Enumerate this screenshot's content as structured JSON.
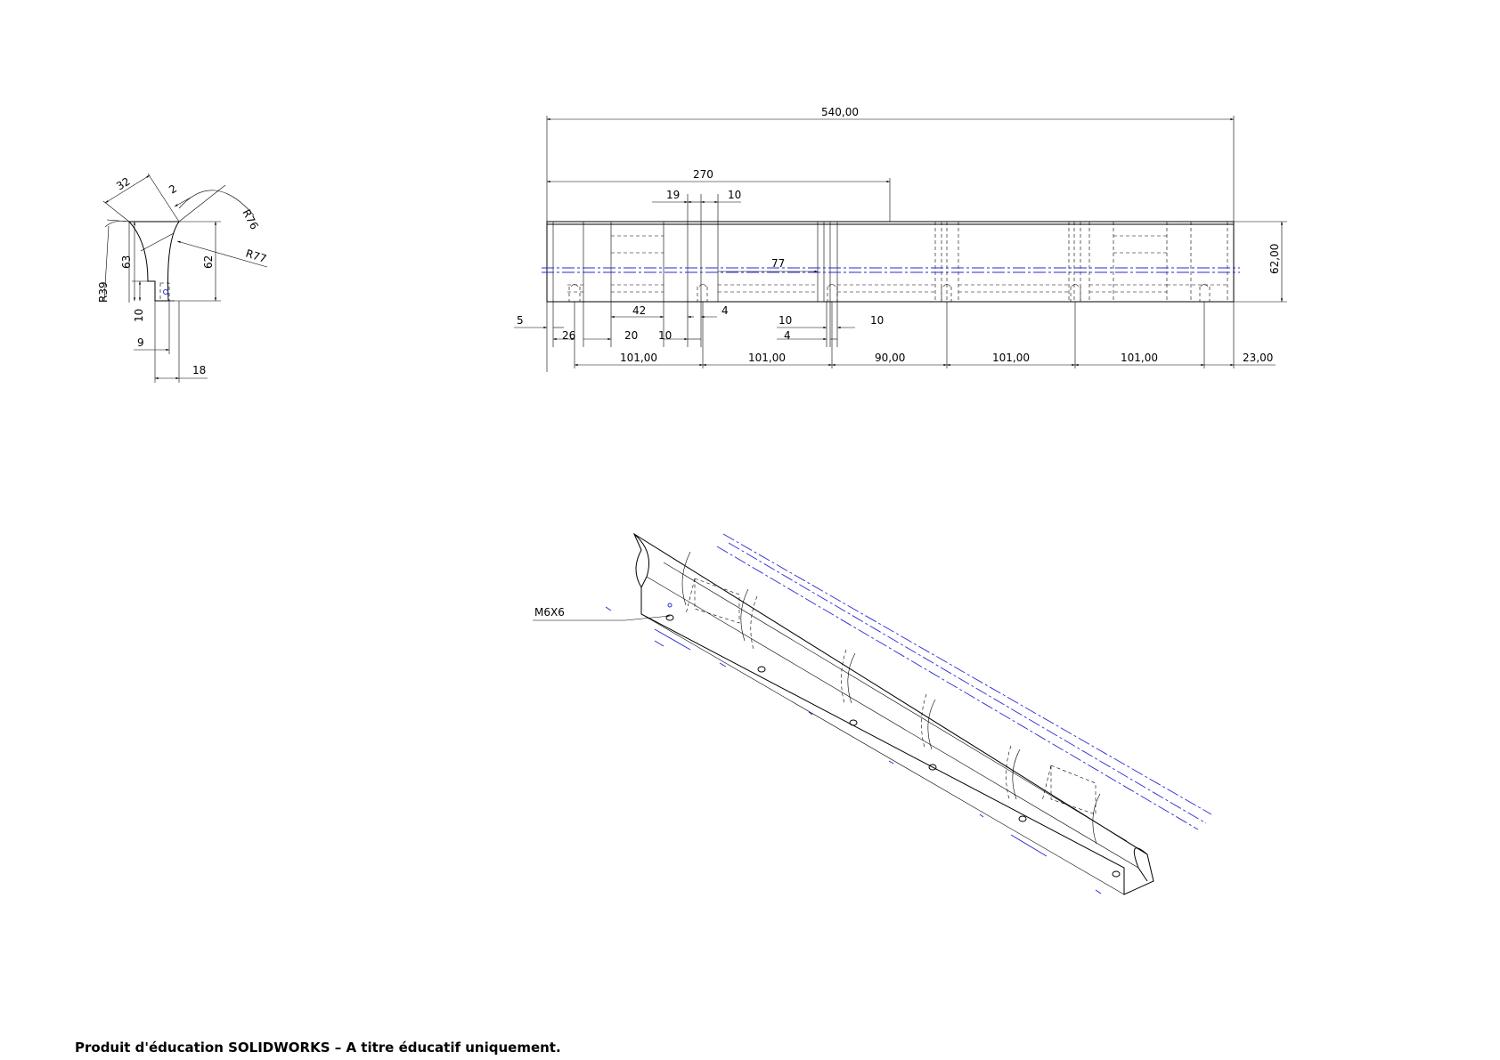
{
  "footer": {
    "text": "Produit d'éducation SOLIDWORKS – A titre éducatif uniquement."
  },
  "side_view": {
    "dims": {
      "d32": "32",
      "d2": "2",
      "r76": "R76",
      "r77": "R77",
      "r39": "R39",
      "d63": "63",
      "d62": "62",
      "d10": "10",
      "d9": "9",
      "d18": "18"
    }
  },
  "front_view": {
    "dims": {
      "overall": "540,00",
      "half": "270",
      "d19": "19",
      "d10a": "10",
      "d77": "77",
      "height": "62,00",
      "d5": "5",
      "d26": "26",
      "d20": "20",
      "d10b": "10",
      "d42": "42",
      "d4a": "4",
      "d10c": "10",
      "d4b": "4",
      "d10d": "10",
      "s1": "101,00",
      "s2": "101,00",
      "s3": "90,00",
      "s4": "101,00",
      "s5": "101,00",
      "end": "23,00"
    }
  },
  "iso_view": {
    "callout": "M6X6"
  }
}
